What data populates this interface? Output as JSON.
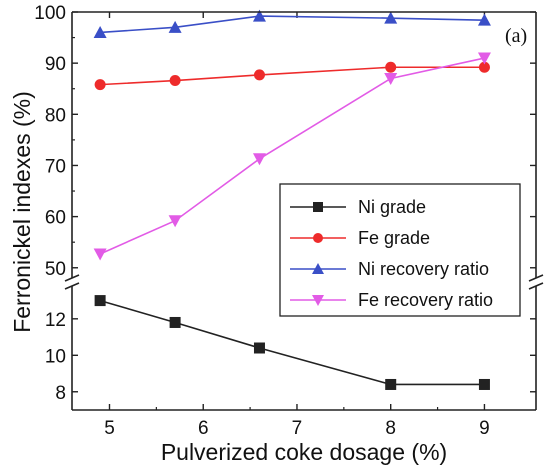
{
  "chart_data": {
    "type": "line",
    "title": "",
    "panel_label": "(a)",
    "xlabel": "Pulverized coke dosage (%)",
    "ylabel": "Ferronickel indexes (%)",
    "x_ticks": [
      "5",
      "6",
      "7",
      "8",
      "9"
    ],
    "y_upper_ticks": [
      "50",
      "60",
      "70",
      "80",
      "90",
      "100"
    ],
    "y_lower_ticks": [
      "8",
      "10",
      "12"
    ],
    "y_upper_range": [
      48,
      100
    ],
    "y_lower_range": [
      7,
      13.8
    ],
    "x_range": [
      4.6,
      9.55
    ],
    "axis_break": true,
    "legend_position": "inside-lower-right",
    "x": [
      4.9,
      5.7,
      6.6,
      8.0,
      9.0
    ],
    "series": [
      {
        "name": "Ni grade",
        "segment": "lower",
        "marker": "square",
        "color": "#222222",
        "values": [
          13.0,
          11.8,
          10.4,
          8.4,
          8.4
        ]
      },
      {
        "name": "Fe grade",
        "segment": "upper",
        "marker": "circle",
        "color": "#ee2b2b",
        "values": [
          85.8,
          86.6,
          87.7,
          89.2,
          89.2
        ]
      },
      {
        "name": "Ni recovery ratio",
        "segment": "upper",
        "marker": "triangle-up",
        "color": "#3a4fc7",
        "values": [
          96.0,
          97.0,
          99.2,
          98.8,
          98.4
        ]
      },
      {
        "name": "Fe recovery ratio",
        "segment": "upper",
        "marker": "triangle-down",
        "color": "#e25be6",
        "values": [
          52.7,
          59.2,
          71.3,
          87.0,
          91.0
        ]
      }
    ]
  }
}
